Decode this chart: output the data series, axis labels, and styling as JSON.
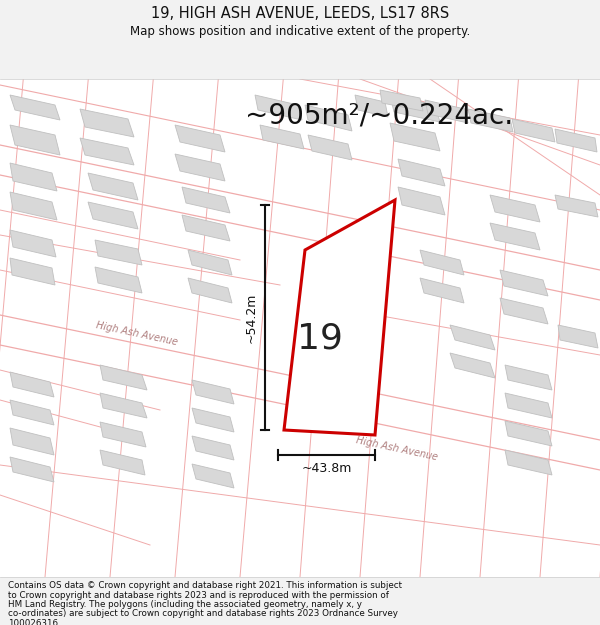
{
  "title_line1": "19, HIGH ASH AVENUE, LEEDS, LS17 8RS",
  "title_line2": "Map shows position and indicative extent of the property.",
  "area_text": "~905m²/~0.224ac.",
  "label_number": "19",
  "dim_width": "~43.8m",
  "dim_height": "~54.2m",
  "footer_lines": [
    "Contains OS data © Crown copyright and database right 2021. This information is subject",
    "to Crown copyright and database rights 2023 and is reproduced with the permission of",
    "HM Land Registry. The polygons (including the associated geometry, namely x, y",
    "co-ordinates) are subject to Crown copyright and database rights 2023 Ordnance Survey",
    "100026316."
  ],
  "bg_color": "#f2f2f2",
  "map_bg": "#ffffff",
  "plot_edge_color": "#cc0000",
  "building_face": "#d8d8d8",
  "building_edge": "#c0c0c0",
  "road_color": "#f0aaaa",
  "road_label_color": "#b08080",
  "dim_color": "#111111",
  "title_color": "#111111",
  "area_color": "#111111",
  "footer_color": "#111111"
}
